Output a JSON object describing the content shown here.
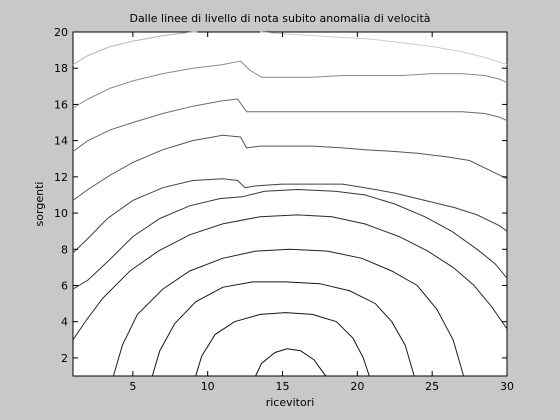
{
  "chart_data": {
    "type": "line",
    "title": "Dalle linee di livello di nota subito anomalia di velocità",
    "xlabel": "ricevitori",
    "ylabel": "sorgenti",
    "xlim": [
      1,
      30
    ],
    "ylim": [
      1,
      20
    ],
    "xticks": [
      5,
      10,
      15,
      20,
      25,
      30
    ],
    "yticks": [
      2,
      4,
      6,
      8,
      10,
      12,
      14,
      16,
      18,
      20
    ],
    "grid": false,
    "legend": "none",
    "series": [
      {
        "color": "#101010",
        "points": [
          [
            13.2,
            1
          ],
          [
            13.6,
            1.7
          ],
          [
            14.5,
            2.3
          ],
          [
            15.3,
            2.5
          ],
          [
            16.2,
            2.4
          ],
          [
            17.1,
            1.9
          ],
          [
            17.8,
            1.1
          ],
          [
            17.9,
            1
          ]
        ]
      },
      {
        "color": "#141414",
        "points": [
          [
            9.2,
            1
          ],
          [
            9.6,
            2.1
          ],
          [
            10.5,
            3.3
          ],
          [
            11.8,
            4.0
          ],
          [
            13.5,
            4.4
          ],
          [
            15.2,
            4.5
          ],
          [
            17,
            4.4
          ],
          [
            18.6,
            4.0
          ],
          [
            19.7,
            3.1
          ],
          [
            20.4,
            2.0
          ],
          [
            20.8,
            1
          ]
        ]
      },
      {
        "color": "#181818",
        "points": [
          [
            6.3,
            1
          ],
          [
            6.8,
            2.4
          ],
          [
            7.8,
            3.9
          ],
          [
            9.2,
            5.1
          ],
          [
            11,
            5.9
          ],
          [
            13,
            6.2
          ],
          [
            15.2,
            6.2
          ],
          [
            17.5,
            6.1
          ],
          [
            19.5,
            5.7
          ],
          [
            21.2,
            5.0
          ],
          [
            22.3,
            4.0
          ],
          [
            23.2,
            2.7
          ],
          [
            23.8,
            1
          ]
        ]
      },
      {
        "color": "#202020",
        "points": [
          [
            3.7,
            1
          ],
          [
            4.3,
            2.7
          ],
          [
            5.3,
            4.4
          ],
          [
            7,
            5.8
          ],
          [
            8.8,
            6.8
          ],
          [
            11,
            7.5
          ],
          [
            13.2,
            7.9
          ],
          [
            15.5,
            8
          ],
          [
            18,
            7.9
          ],
          [
            20.3,
            7.5
          ],
          [
            22.3,
            6.8
          ],
          [
            24,
            6
          ],
          [
            25.3,
            4.7
          ],
          [
            26.4,
            3.0
          ],
          [
            27.1,
            1
          ]
        ]
      },
      {
        "color": "#2a2a2a",
        "points": [
          [
            1,
            3
          ],
          [
            1.9,
            4.1
          ],
          [
            3,
            5.3
          ],
          [
            4.8,
            6.8
          ],
          [
            6.7,
            7.9
          ],
          [
            8.8,
            8.8
          ],
          [
            11,
            9.4
          ],
          [
            13.5,
            9.8
          ],
          [
            16,
            9.9
          ],
          [
            18.3,
            9.8
          ],
          [
            20.5,
            9.4
          ],
          [
            22.8,
            8.7
          ],
          [
            24.7,
            7.9
          ],
          [
            26.4,
            7.0
          ],
          [
            27.8,
            6.0
          ],
          [
            29,
            4.8
          ],
          [
            30,
            3.6
          ]
        ]
      },
      {
        "color": "#363636",
        "points": [
          [
            1,
            5.8
          ],
          [
            2,
            6.3
          ],
          [
            3.3,
            7.3
          ],
          [
            5,
            8.7
          ],
          [
            6.8,
            9.7
          ],
          [
            8.8,
            10.4
          ],
          [
            10.8,
            10.8
          ],
          [
            12.3,
            10.9
          ],
          [
            13.8,
            11.2
          ],
          [
            16,
            11.3
          ],
          [
            18.5,
            11.2
          ],
          [
            20.5,
            11
          ],
          [
            22.5,
            10.5
          ],
          [
            24.5,
            9.8
          ],
          [
            26.3,
            9
          ],
          [
            28,
            8
          ],
          [
            29.2,
            7.2
          ],
          [
            30,
            6.4
          ]
        ]
      },
      {
        "color": "#424242",
        "points": [
          [
            1,
            7.8
          ],
          [
            2,
            8.6
          ],
          [
            3.3,
            9.7
          ],
          [
            5,
            10.7
          ],
          [
            7,
            11.4
          ],
          [
            9,
            11.8
          ],
          [
            11,
            11.9
          ],
          [
            12,
            11.8
          ],
          [
            12.5,
            11.4
          ],
          [
            13.2,
            11.5
          ],
          [
            15,
            11.6
          ],
          [
            17,
            11.6
          ],
          [
            19,
            11.6
          ],
          [
            20.5,
            11.4
          ],
          [
            22.5,
            11.1
          ],
          [
            24.5,
            10.7
          ],
          [
            26.5,
            10.3
          ],
          [
            28,
            9.9
          ],
          [
            29.5,
            9.3
          ],
          [
            30,
            9
          ]
        ]
      },
      {
        "color": "#555555",
        "points": [
          [
            1,
            10.7
          ],
          [
            2,
            11.3
          ],
          [
            3.5,
            12.1
          ],
          [
            5,
            12.8
          ],
          [
            7,
            13.5
          ],
          [
            9,
            14
          ],
          [
            11,
            14.3
          ],
          [
            12.2,
            14.2
          ],
          [
            12.6,
            13.6
          ],
          [
            13.5,
            13.7
          ],
          [
            15,
            13.7
          ],
          [
            17,
            13.7
          ],
          [
            19,
            13.6
          ],
          [
            20.5,
            13.5
          ],
          [
            22.5,
            13.4
          ],
          [
            24,
            13.3
          ],
          [
            26,
            13.1
          ],
          [
            27.5,
            12.9
          ],
          [
            29,
            12.3
          ],
          [
            30,
            11.9
          ]
        ]
      },
      {
        "color": "#6c6c6c",
        "points": [
          [
            1,
            13.4
          ],
          [
            2,
            14
          ],
          [
            3.5,
            14.6
          ],
          [
            5,
            15
          ],
          [
            7,
            15.5
          ],
          [
            9,
            15.9
          ],
          [
            11,
            16.2
          ],
          [
            12,
            16.3
          ],
          [
            12.6,
            15.6
          ],
          [
            13.5,
            15.6
          ],
          [
            15,
            15.6
          ],
          [
            17,
            15.6
          ],
          [
            19,
            15.6
          ],
          [
            21,
            15.6
          ],
          [
            23,
            15.6
          ],
          [
            25,
            15.6
          ],
          [
            27,
            15.6
          ],
          [
            28.5,
            15.5
          ],
          [
            29.5,
            15.3
          ],
          [
            30,
            15.1
          ]
        ]
      },
      {
        "color": "#8a8a8a",
        "points": [
          [
            1,
            15.8
          ],
          [
            2,
            16.3
          ],
          [
            3.5,
            16.9
          ],
          [
            5,
            17.3
          ],
          [
            7,
            17.7
          ],
          [
            9,
            18
          ],
          [
            11,
            18.2
          ],
          [
            12.2,
            18.4
          ],
          [
            12.8,
            17.9
          ],
          [
            13.6,
            17.5
          ],
          [
            15,
            17.5
          ],
          [
            17,
            17.5
          ],
          [
            19,
            17.6
          ],
          [
            21,
            17.6
          ],
          [
            23,
            17.6
          ],
          [
            25,
            17.7
          ],
          [
            27,
            17.7
          ],
          [
            28.5,
            17.6
          ],
          [
            29.5,
            17.4
          ],
          [
            30,
            17.2
          ]
        ]
      },
      {
        "color": "#b5b5b5",
        "points": [
          [
            1,
            18.2
          ],
          [
            2,
            18.7
          ],
          [
            3.5,
            19.2
          ],
          [
            5,
            19.5
          ],
          [
            7,
            19.8
          ],
          [
            9,
            20
          ],
          [
            9.3,
            20
          ]
        ]
      },
      {
        "color": "#cccccc",
        "points": [
          [
            13.5,
            20
          ],
          [
            15,
            19.9
          ],
          [
            17,
            19.8
          ],
          [
            19,
            19.7
          ],
          [
            21,
            19.6
          ],
          [
            23,
            19.4
          ],
          [
            25,
            19.2
          ],
          [
            27,
            18.9
          ],
          [
            28.5,
            18.6
          ],
          [
            30,
            18.2
          ]
        ]
      }
    ]
  }
}
